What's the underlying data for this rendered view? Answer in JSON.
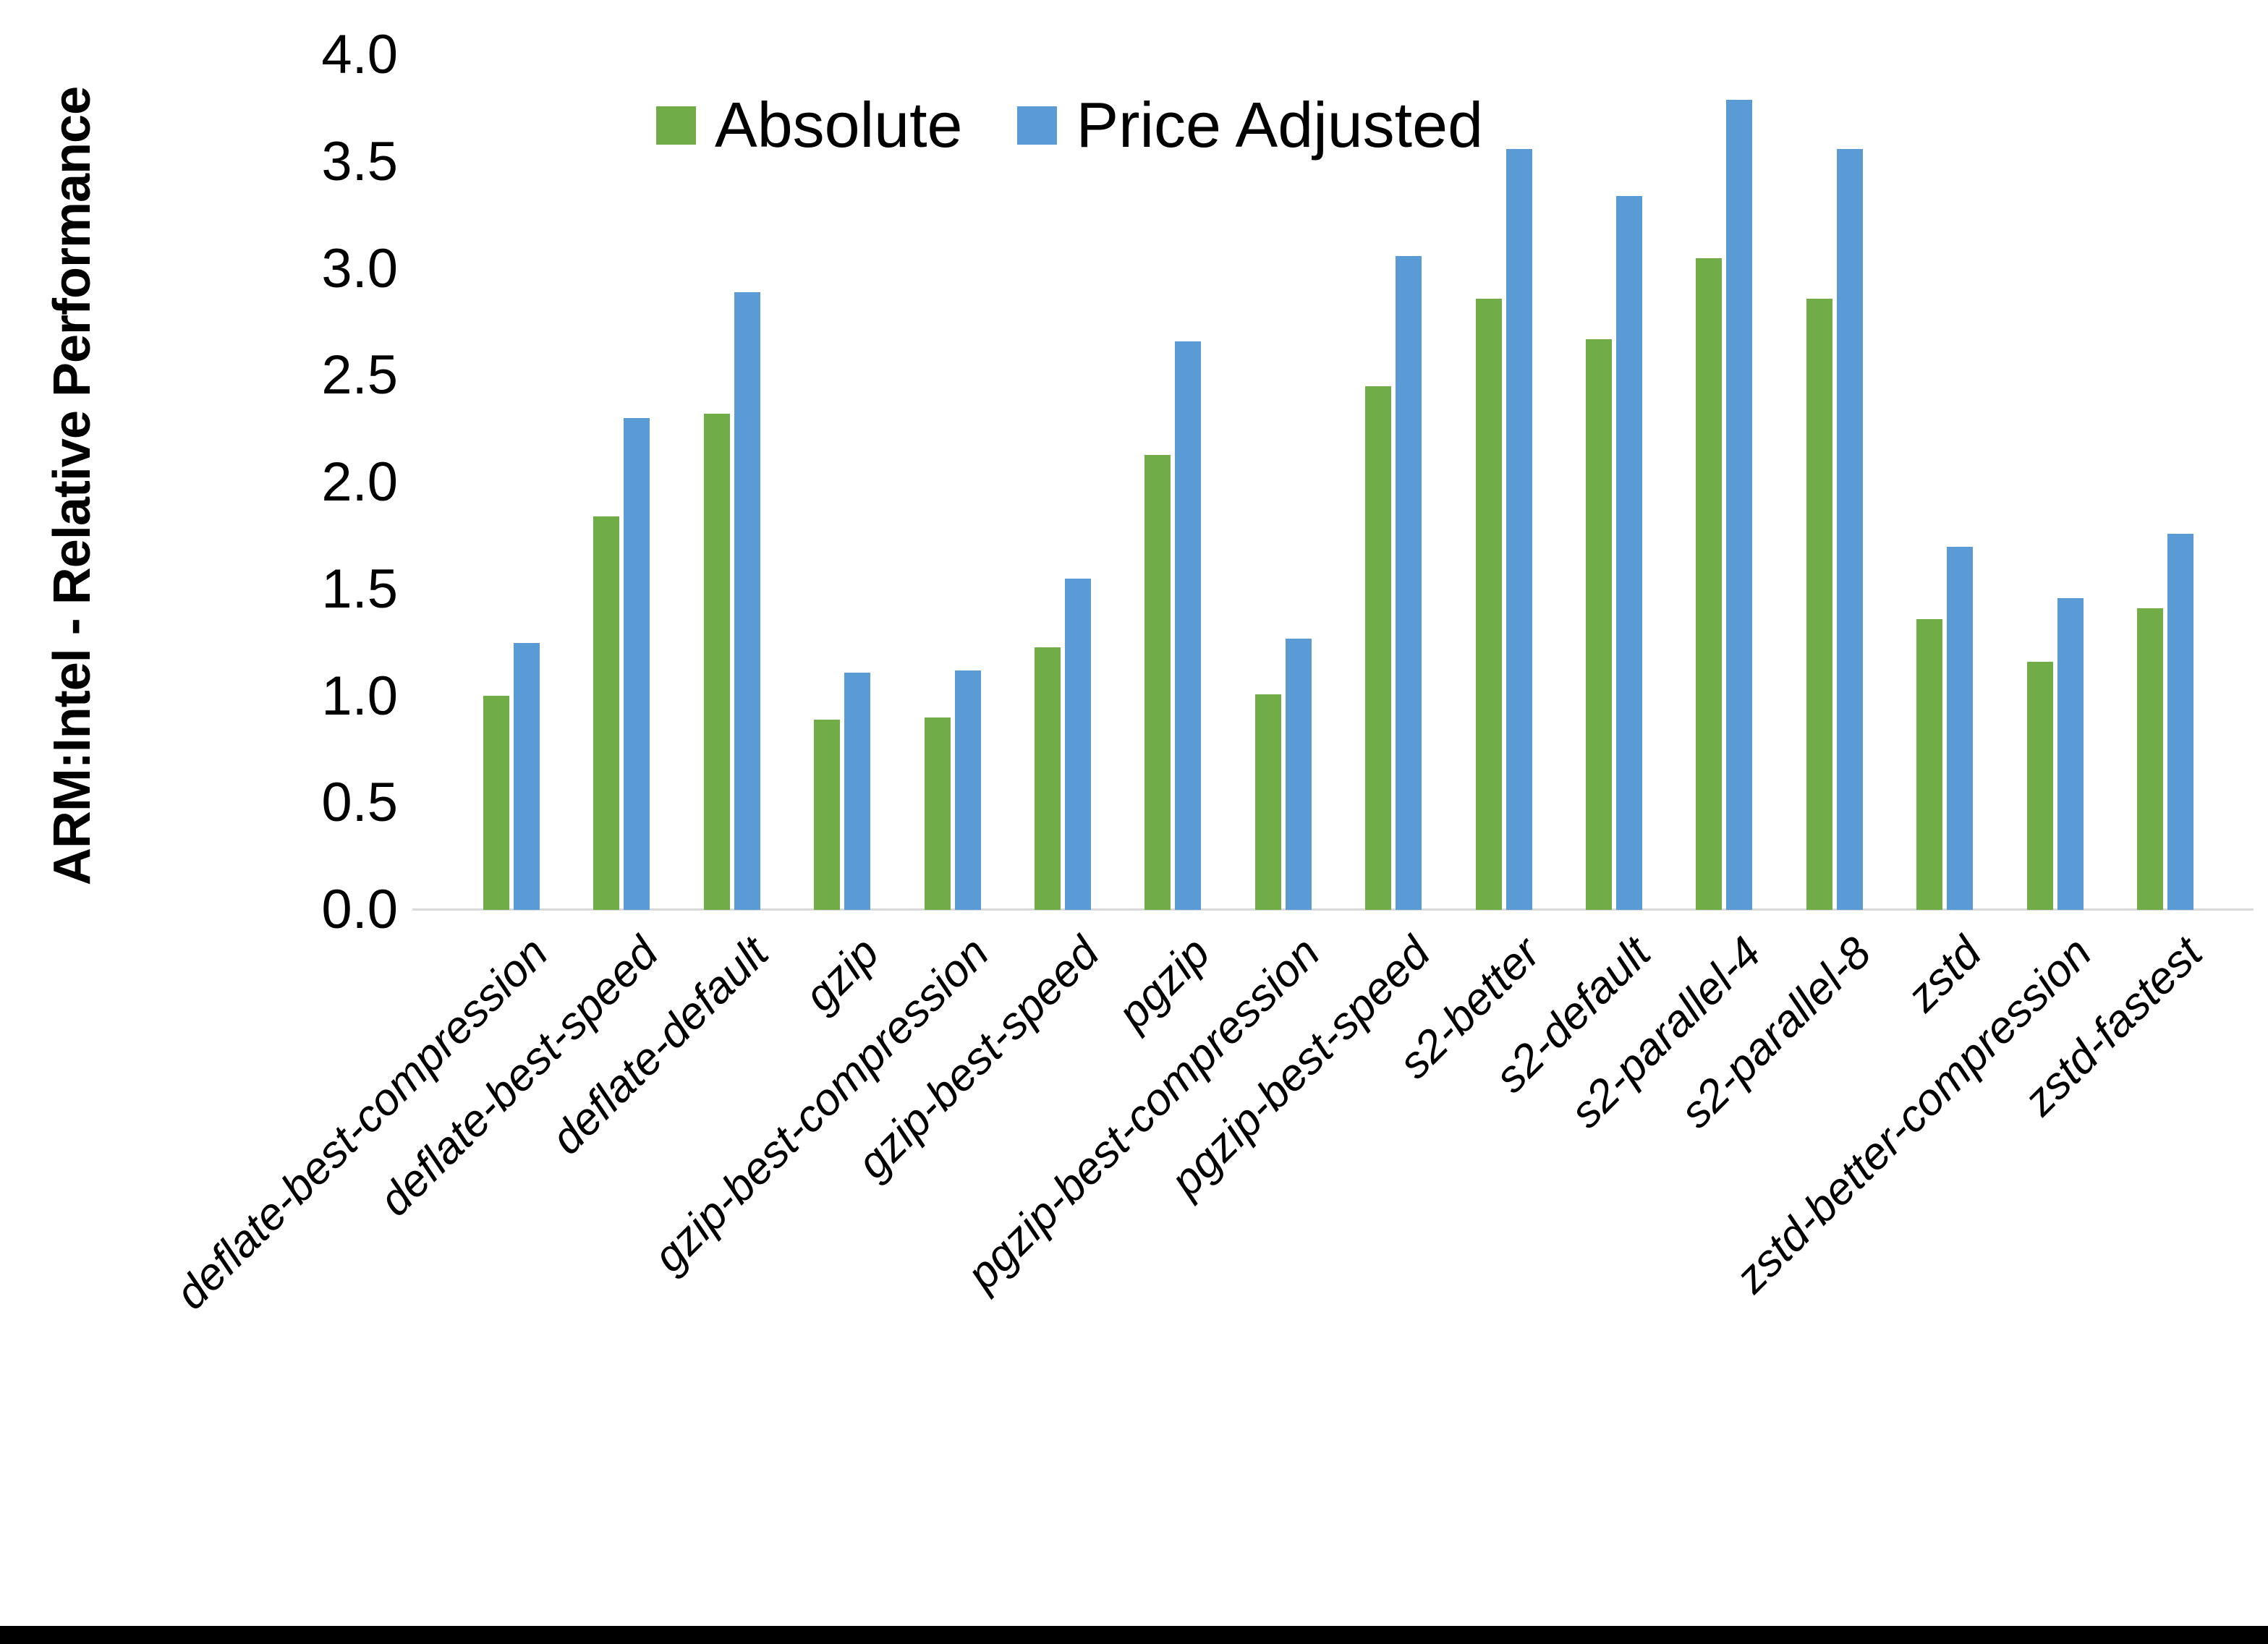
{
  "chart_data": {
    "type": "bar",
    "title": "",
    "xlabel": "",
    "ylabel": "ARM:Intel - Relative Performance",
    "ylim": [
      0.0,
      4.0
    ],
    "ytick_step": 0.5,
    "y_tick_labels": [
      "4.0",
      "3.5",
      "3.0",
      "2.5",
      "2.0",
      "1.5",
      "1.0",
      "0.5",
      "0.0"
    ],
    "grid": false,
    "legend_position": "top",
    "categories": [
      "deflate-best-compression",
      "deflate-best-speed",
      "deflate-default",
      "gzip",
      "gzip-best-compression",
      "gzip-best-speed",
      "pgzip",
      "pgzip-best-compression",
      "pgzip-best-speed",
      "s2-better",
      "s2-default",
      "s2-parallel-4",
      "s2-parallel-8",
      "zstd",
      "zstd-better-compression",
      "zstd-fastest"
    ],
    "series": [
      {
        "name": "Absolute",
        "color": "#70AD47",
        "values": [
          1.0,
          1.84,
          2.32,
          0.89,
          0.9,
          1.23,
          2.13,
          1.01,
          2.45,
          2.86,
          2.67,
          3.05,
          2.86,
          1.36,
          1.16,
          1.41
        ]
      },
      {
        "name": "Price Adjusted",
        "color": "#5B9BD5",
        "values": [
          1.25,
          2.3,
          2.89,
          1.11,
          1.12,
          1.55,
          2.66,
          1.27,
          3.06,
          3.56,
          3.34,
          3.79,
          3.56,
          1.7,
          1.46,
          1.76
        ]
      }
    ],
    "axis_line_color": "#D9D9D9",
    "bottom_border_color": "#000000"
  }
}
